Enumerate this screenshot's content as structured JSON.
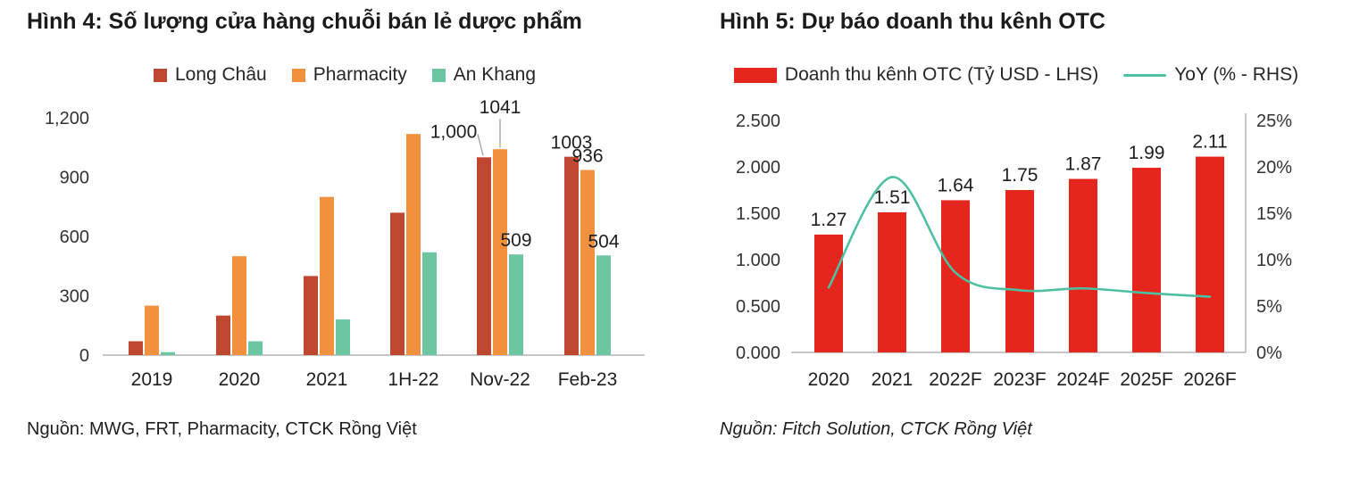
{
  "fig4": {
    "title": "Hình 4: Số lượng cửa hàng chuỗi bán lẻ dược phẩm",
    "source": "Nguồn: MWG, FRT, Pharmacity, CTCK Rồng Việt"
  },
  "fig5": {
    "title": "Hình 5: Dự báo doanh thu kênh OTC",
    "source": "Nguồn: Fitch Solution, CTCK Rồng Việt"
  },
  "chart_data": [
    {
      "type": "bar",
      "title": "Hình 4: Số lượng cửa hàng chuỗi bán lẻ dược phẩm",
      "categories": [
        "2019",
        "2020",
        "2021",
        "1H-22",
        "Nov-22",
        "Feb-23"
      ],
      "series": [
        {
          "name": "Long Châu",
          "color": "#c0472f",
          "values": [
            70,
            200,
            400,
            720,
            1000,
            1003
          ]
        },
        {
          "name": "Pharmacity",
          "color": "#f2913d",
          "values": [
            250,
            500,
            800,
            1118,
            1041,
            936
          ]
        },
        {
          "name": "An Khang",
          "color": "#6cc6a2",
          "values": [
            15,
            70,
            180,
            520,
            509,
            504
          ]
        }
      ],
      "ylim": [
        0,
        1200
      ],
      "yticks": [
        {
          "value": 0,
          "label": "0"
        },
        {
          "value": 300,
          "label": "300"
        },
        {
          "value": 600,
          "label": "600"
        },
        {
          "value": 900,
          "label": "900"
        },
        {
          "value": 1200,
          "label": "1,200"
        }
      ],
      "annotations": [
        {
          "series": 0,
          "cat": 4,
          "text": "1,000",
          "placement": "offset-left"
        },
        {
          "series": 1,
          "cat": 4,
          "text": "1041",
          "placement": "above-leader"
        },
        {
          "series": 2,
          "cat": 4,
          "text": "509",
          "placement": "above"
        },
        {
          "series": 0,
          "cat": 5,
          "text": "1003",
          "placement": "above"
        },
        {
          "series": 1,
          "cat": 5,
          "text": "936",
          "placement": "above"
        },
        {
          "series": 2,
          "cat": 5,
          "text": "504",
          "placement": "above"
        }
      ],
      "legend_position": "top",
      "grid": false
    },
    {
      "type": "bar+line",
      "title": "Hình 5: Dự báo doanh thu kênh OTC",
      "categories": [
        "2020",
        "2021",
        "2022F",
        "2023F",
        "2024F",
        "2025F",
        "2026F"
      ],
      "bar_series": {
        "name": "Doanh thu kênh OTC (Tỷ USD - LHS)",
        "color": "#e5261c",
        "values": [
          1.27,
          1.51,
          1.64,
          1.75,
          1.87,
          1.99,
          2.11
        ],
        "labels": [
          "1.27",
          "1.51",
          "1.64",
          "1.75",
          "1.87",
          "1.99",
          "2.11"
        ]
      },
      "line_series": {
        "name": "YoY (% - RHS)",
        "color": "#4fbfa2",
        "values": [
          7.0,
          18.9,
          8.6,
          6.7,
          6.9,
          6.4,
          6.0
        ]
      },
      "ylim_left": [
        0,
        2.5
      ],
      "yticks_left": [
        {
          "value": 0,
          "label": "0.000"
        },
        {
          "value": 0.5,
          "label": "0.500"
        },
        {
          "value": 1,
          "label": "1.000"
        },
        {
          "value": 1.5,
          "label": "1.500"
        },
        {
          "value": 2,
          "label": "2.000"
        },
        {
          "value": 2.5,
          "label": "2.500"
        }
      ],
      "ylim_right": [
        0,
        25
      ],
      "yticks_right": [
        {
          "value": 0,
          "label": "0%"
        },
        {
          "value": 5,
          "label": "5%"
        },
        {
          "value": 10,
          "label": "10%"
        },
        {
          "value": 15,
          "label": "15%"
        },
        {
          "value": 20,
          "label": "20%"
        },
        {
          "value": 25,
          "label": "25%"
        }
      ],
      "legend_position": "top",
      "grid": false
    }
  ]
}
